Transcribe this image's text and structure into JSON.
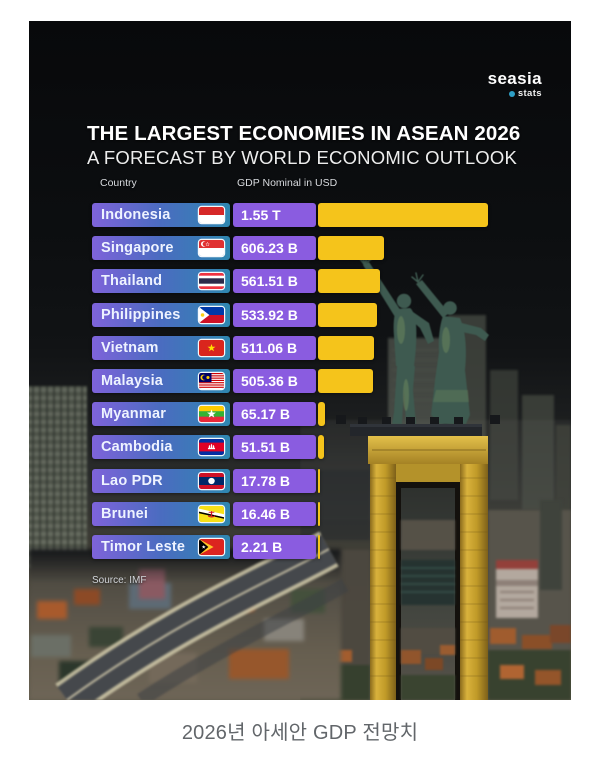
{
  "page": {
    "caption": "2026년 아세안 GDP 전망치"
  },
  "logo": {
    "brand": "seasia",
    "sub": "stats"
  },
  "infographic": {
    "title": "THE LARGEST ECONOMIES IN ASEAN 2026",
    "subtitle": "A FORECAST BY WORLD ECONOMIC OUTLOOK",
    "columns": {
      "country": "Country",
      "value": "GDP Nominal in USD"
    },
    "source": "Source: IMF"
  },
  "chart_data": {
    "type": "bar",
    "orientation": "horizontal",
    "title": "THE LARGEST ECONOMIES IN ASEAN 2026",
    "subtitle": "A FORECAST BY WORLD ECONOMIC OUTLOOK",
    "unit": "USD nominal GDP, forecast 2026",
    "source": "Source: IMF",
    "categories": [
      "Indonesia",
      "Singapore",
      "Thailand",
      "Philippines",
      "Vietnam",
      "Malaysia",
      "Myanmar",
      "Cambodia",
      "Lao PDR",
      "Brunei",
      "Timor Leste"
    ],
    "values_billions": [
      1550,
      606.23,
      561.51,
      533.92,
      511.06,
      505.36,
      65.17,
      51.51,
      17.78,
      16.46,
      2.21
    ],
    "value_labels": [
      "1.55 T",
      "606.23 B",
      "561.51 B",
      "533.92 B",
      "511.06 B",
      "505.36 B",
      "65.17 B",
      "51.51 B",
      "17.78 B",
      "16.46 B",
      "2.21 B"
    ],
    "flags": [
      "flag-indonesia",
      "flag-singapore",
      "flag-thailand",
      "flag-philippines",
      "flag-vietnam",
      "flag-malaysia",
      "flag-myanmar",
      "flag-cambodia",
      "flag-laos",
      "flag-brunei",
      "flag-timor-leste"
    ],
    "max_value_billions": 1550,
    "colors": {
      "bar": "#f5c41b",
      "value_box": "#8a5ce0",
      "label_gradient": [
        "#7e63da",
        "#4a6cc0",
        "#2e87b0"
      ],
      "title": "#ffffff",
      "background": "#0b0d10",
      "caption_text": "#62666a",
      "logo_dot": "#2e9fc6"
    },
    "legend": "none",
    "grid": "off"
  }
}
